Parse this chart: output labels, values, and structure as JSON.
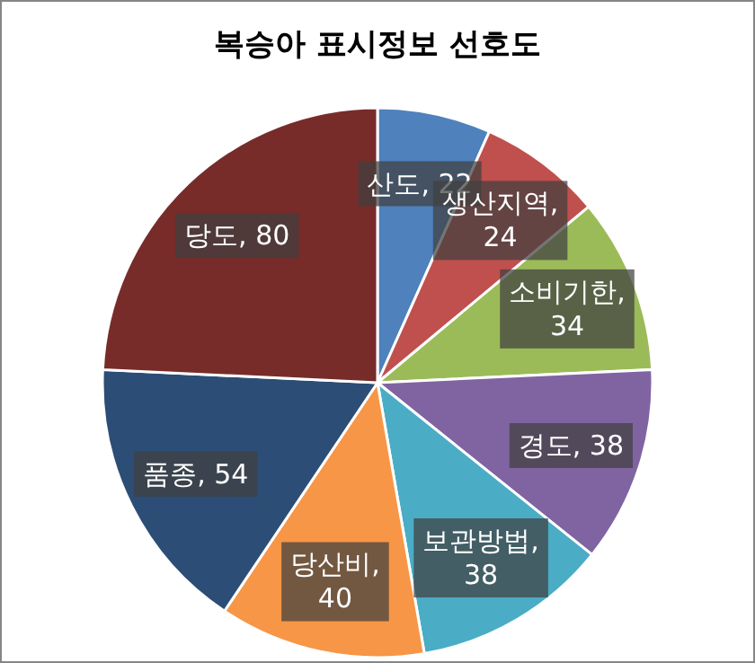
{
  "chart_data": {
    "type": "pie",
    "title": "복승아 표시정보 선호도",
    "categories": [
      "산도",
      "생산지역",
      "소비기한",
      "경도",
      "보관방법",
      "당산비",
      "품종",
      "당도"
    ],
    "values": [
      22,
      24,
      34,
      38,
      38,
      40,
      54,
      80
    ],
    "colors": [
      "#4f81bd",
      "#c0504d",
      "#9bbb59",
      "#8064a2",
      "#4bacc6",
      "#f79646",
      "#2c4d75",
      "#772c2a"
    ],
    "value_labels": [
      ", 22",
      ", 24",
      ", 34",
      ", 38",
      ", 38",
      ", 40",
      ", 54",
      ", 80"
    ]
  }
}
